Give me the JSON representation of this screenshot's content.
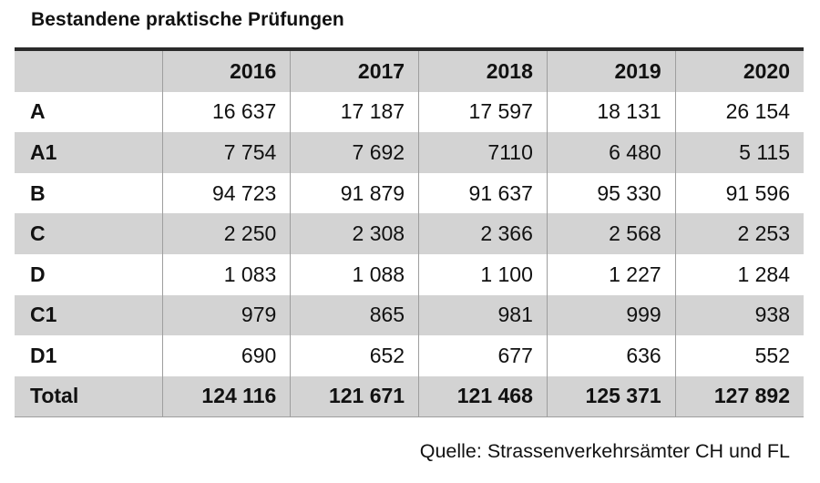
{
  "title": "Bestandene praktische Prüfungen",
  "table": {
    "years": [
      "2016",
      "2017",
      "2018",
      "2019",
      "2020"
    ],
    "rows": [
      {
        "label": "A",
        "values": [
          "16 637",
          "17 187",
          "17 597",
          "18 131",
          "26 154"
        ]
      },
      {
        "label": "A1",
        "values": [
          "7 754",
          "7 692",
          "7110",
          "6 480",
          "5 115"
        ]
      },
      {
        "label": "B",
        "values": [
          "94 723",
          "91 879",
          "91 637",
          "95 330",
          "91 596"
        ]
      },
      {
        "label": "C",
        "values": [
          "2 250",
          "2 308",
          "2 366",
          "2 568",
          "2 253"
        ]
      },
      {
        "label": "D",
        "values": [
          "1 083",
          "1 088",
          "1 100",
          "1 227",
          "1 284"
        ]
      },
      {
        "label": "C1",
        "values": [
          "979",
          "865",
          "981",
          "999",
          "938"
        ]
      },
      {
        "label": "D1",
        "values": [
          "690",
          "652",
          "677",
          "636",
          "552"
        ]
      },
      {
        "label": "Total",
        "values": [
          "124 116",
          "121 671",
          "121 468",
          "125 371",
          "127 892"
        ]
      }
    ]
  },
  "source": "Quelle: Strassenverkehrsämter CH und FL"
}
